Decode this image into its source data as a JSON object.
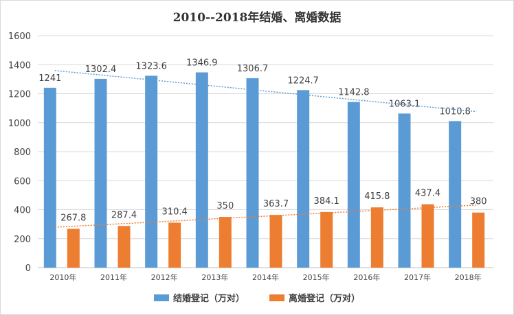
{
  "chart_data": {
    "type": "bar",
    "title": "2010--2018年结婚、离婚数据",
    "categories": [
      "2010年",
      "2011年",
      "2012年",
      "2013年",
      "2014年",
      "2015年",
      "2016年",
      "2017年",
      "2018年"
    ],
    "series": [
      {
        "name": "结婚登记（万对）",
        "color": "#5b9bd5",
        "values": [
          1241,
          1302.4,
          1323.6,
          1346.9,
          1306.7,
          1224.7,
          1142.8,
          1063.1,
          1010.8
        ],
        "labels": [
          "1241",
          "1302.4",
          "1323.6",
          "1346.9",
          "1306.7",
          "1224.7",
          "1142.8",
          "1063.1",
          "1010.8"
        ]
      },
      {
        "name": "离婚登记（万对）",
        "color": "#ed7d31",
        "values": [
          267.8,
          287.4,
          310.4,
          350,
          363.7,
          384.1,
          415.8,
          437.4,
          380
        ],
        "labels": [
          "267.8",
          "287.4",
          "310.4",
          "350",
          "363.7",
          "384.1",
          "415.8",
          "437.4",
          "380"
        ]
      }
    ],
    "trendlines": true,
    "ylim": [
      0,
      1600
    ],
    "yticks": [
      "0",
      "200",
      "400",
      "600",
      "800",
      "1000",
      "1200",
      "1400",
      "1600"
    ],
    "grid": true,
    "legend_position": "bottom"
  }
}
